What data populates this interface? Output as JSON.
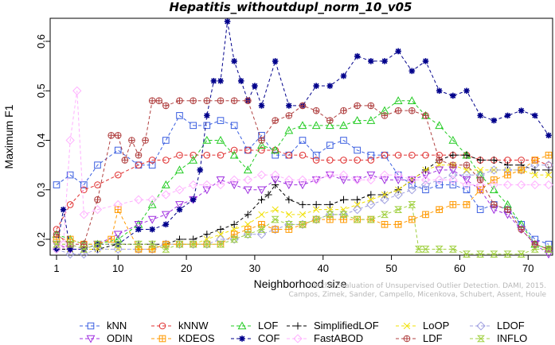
{
  "chart_data": {
    "type": "line",
    "title": "Hepatitis_withoutdupl_norm_10_v05",
    "xlabel": "Neighborhood size",
    "ylabel": "Maximum F1",
    "xlim": [
      1,
      73
    ],
    "ylim": [
      0.17,
      0.65
    ],
    "xticks": [
      1,
      10,
      20,
      30,
      40,
      50,
      60,
      70
    ],
    "yticks": [
      0.2,
      0.3,
      0.4,
      0.5,
      0.6
    ],
    "grid": false,
    "legend_position": "bottom",
    "credit": [
      "Campos, Zimek, Sander, Campello, Micenkova, Schubert, Assent, Houle",
      "On the Evaluation of Unsupervised Outlier Detection. DAMI, 2015."
    ],
    "series": [
      {
        "name": "kNN",
        "color": "#3b5fe0",
        "marker": "square",
        "x": [
          1,
          3,
          5,
          7,
          10,
          13,
          15,
          17,
          19,
          21,
          23,
          25,
          27,
          29,
          31,
          33,
          35,
          37,
          39,
          41,
          43,
          45,
          47,
          49,
          51,
          53,
          55,
          57,
          59,
          61,
          63,
          65,
          67,
          69,
          71,
          73
        ],
        "values": [
          0.31,
          0.33,
          0.31,
          0.35,
          0.38,
          0.35,
          0.35,
          0.4,
          0.45,
          0.43,
          0.43,
          0.44,
          0.43,
          0.38,
          0.41,
          0.37,
          0.37,
          0.4,
          0.37,
          0.39,
          0.4,
          0.38,
          0.37,
          0.37,
          0.33,
          0.31,
          0.3,
          0.31,
          0.31,
          0.3,
          0.26,
          0.27,
          0.26,
          0.23,
          0.2,
          0.19
        ]
      },
      {
        "name": "kNNW",
        "color": "#e03030",
        "marker": "circle",
        "x": [
          1,
          3,
          5,
          7,
          10,
          13,
          15,
          17,
          19,
          21,
          23,
          25,
          27,
          29,
          31,
          33,
          35,
          37,
          39,
          41,
          43,
          45,
          47,
          49,
          51,
          53,
          55,
          57,
          59,
          61,
          63,
          65,
          67,
          69,
          71,
          73
        ],
        "values": [
          0.22,
          0.27,
          0.3,
          0.31,
          0.33,
          0.35,
          0.36,
          0.36,
          0.37,
          0.37,
          0.37,
          0.37,
          0.38,
          0.38,
          0.38,
          0.38,
          0.37,
          0.37,
          0.36,
          0.36,
          0.36,
          0.36,
          0.36,
          0.37,
          0.37,
          0.37,
          0.37,
          0.37,
          0.37,
          0.37,
          0.36,
          0.36,
          0.36,
          0.36,
          0.36,
          0.35
        ]
      },
      {
        "name": "LOF",
        "color": "#22cc22",
        "marker": "triangle",
        "x": [
          1,
          3,
          5,
          7,
          10,
          13,
          15,
          17,
          19,
          21,
          23,
          25,
          27,
          29,
          31,
          33,
          35,
          37,
          39,
          41,
          43,
          45,
          47,
          49,
          51,
          53,
          55,
          57,
          59,
          61,
          63,
          65,
          67,
          69,
          71,
          73
        ],
        "values": [
          0.21,
          0.2,
          0.19,
          0.19,
          0.2,
          0.23,
          0.27,
          0.31,
          0.34,
          0.36,
          0.4,
          0.4,
          0.37,
          0.34,
          0.39,
          0.38,
          0.42,
          0.43,
          0.43,
          0.43,
          0.43,
          0.44,
          0.44,
          0.46,
          0.48,
          0.48,
          0.45,
          0.43,
          0.4,
          0.37,
          0.33,
          0.3,
          0.27,
          0.23,
          0.19,
          0.18
        ]
      },
      {
        "name": "SimplifiedLOF",
        "color": "#000000",
        "marker": "plus",
        "x": [
          1,
          3,
          5,
          7,
          10,
          13,
          15,
          17,
          19,
          21,
          23,
          25,
          27,
          29,
          31,
          32,
          33,
          35,
          37,
          39,
          41,
          43,
          45,
          47,
          49,
          51,
          53,
          55,
          57,
          59,
          61,
          63,
          65,
          67,
          69,
          71,
          73
        ],
        "values": [
          0.18,
          0.18,
          0.18,
          0.18,
          0.19,
          0.19,
          0.19,
          0.19,
          0.2,
          0.2,
          0.21,
          0.22,
          0.23,
          0.25,
          0.28,
          0.29,
          0.31,
          0.28,
          0.27,
          0.27,
          0.27,
          0.28,
          0.28,
          0.29,
          0.29,
          0.3,
          0.32,
          0.34,
          0.36,
          0.37,
          0.37,
          0.36,
          0.36,
          0.35,
          0.35,
          0.34,
          0.34
        ]
      },
      {
        "name": "LoOP",
        "color": "#f0e000",
        "marker": "x",
        "x": [
          1,
          3,
          5,
          7,
          10,
          13,
          15,
          17,
          19,
          21,
          23,
          25,
          27,
          29,
          31,
          33,
          35,
          37,
          39,
          41,
          43,
          45,
          47,
          49,
          51,
          53,
          55,
          57,
          59,
          61,
          63,
          65,
          67,
          69,
          71,
          73
        ],
        "values": [
          0.19,
          0.18,
          0.18,
          0.18,
          0.18,
          0.18,
          0.18,
          0.19,
          0.19,
          0.19,
          0.2,
          0.21,
          0.22,
          0.23,
          0.25,
          0.26,
          0.25,
          0.25,
          0.26,
          0.26,
          0.26,
          0.27,
          0.28,
          0.29,
          0.3,
          0.32,
          0.34,
          0.35,
          0.35,
          0.34,
          0.34,
          0.34,
          0.34,
          0.34,
          0.33,
          0.33
        ]
      },
      {
        "name": "LDOF",
        "color": "#a0a0e0",
        "marker": "diamond",
        "x": [
          1,
          3,
          5,
          7,
          10,
          13,
          15,
          17,
          19,
          21,
          23,
          25,
          27,
          29,
          31,
          33,
          35,
          37,
          39,
          41,
          43,
          45,
          47,
          49,
          51,
          53,
          55,
          57,
          59,
          61,
          63,
          65,
          67,
          69,
          71,
          73
        ],
        "values": [
          0.18,
          0.17,
          0.17,
          0.18,
          0.18,
          0.18,
          0.18,
          0.19,
          0.19,
          0.19,
          0.19,
          0.2,
          0.2,
          0.21,
          0.21,
          0.22,
          0.23,
          0.23,
          0.24,
          0.25,
          0.25,
          0.26,
          0.27,
          0.28,
          0.29,
          0.3,
          0.31,
          0.32,
          0.33,
          0.33,
          0.33,
          0.34,
          0.34,
          0.34,
          0.35,
          0.35
        ]
      },
      {
        "name": "ODIN",
        "color": "#a030e0",
        "marker": "invtriangle",
        "x": [
          1,
          3,
          5,
          7,
          10,
          13,
          15,
          17,
          19,
          21,
          23,
          25,
          27,
          29,
          31,
          33,
          35,
          37,
          39,
          41,
          43,
          45,
          47,
          49,
          51,
          53,
          55,
          57,
          59,
          61,
          63,
          65,
          67,
          69,
          71,
          73
        ],
        "values": [
          0.19,
          0.18,
          0.18,
          0.19,
          0.21,
          0.23,
          0.24,
          0.25,
          0.27,
          0.28,
          0.3,
          0.32,
          0.31,
          0.3,
          0.3,
          0.32,
          0.31,
          0.31,
          0.32,
          0.33,
          0.32,
          0.32,
          0.33,
          0.32,
          0.32,
          0.32,
          0.33,
          0.34,
          0.34,
          0.32,
          0.3,
          0.26,
          0.25,
          0.22,
          0.19,
          0.17
        ]
      },
      {
        "name": "KDEOS",
        "color": "#ff9900",
        "marker": "boxplus",
        "x": [
          1,
          3,
          5,
          7,
          9,
          10,
          13,
          15,
          17,
          19,
          21,
          23,
          25,
          27,
          29,
          31,
          33,
          35,
          37,
          39,
          41,
          43,
          45,
          47,
          49,
          51,
          53,
          55,
          57,
          59,
          61,
          63,
          65,
          67,
          69,
          71,
          73
        ],
        "values": [
          0.2,
          0.2,
          0.19,
          0.19,
          0.2,
          0.26,
          0.18,
          0.18,
          0.19,
          0.19,
          0.19,
          0.19,
          0.19,
          0.21,
          0.22,
          0.23,
          0.22,
          0.22,
          0.23,
          0.24,
          0.24,
          0.24,
          0.24,
          0.24,
          0.23,
          0.23,
          0.24,
          0.25,
          0.26,
          0.27,
          0.27,
          0.3,
          0.32,
          0.33,
          0.34,
          0.36,
          0.37
        ]
      },
      {
        "name": "COF",
        "color": "#00008b",
        "marker": "asterisk",
        "x": [
          1,
          2,
          3,
          5,
          7,
          10,
          13,
          15,
          17,
          19,
          21,
          22,
          23,
          24,
          25,
          26,
          27,
          28,
          29,
          30,
          31,
          33,
          35,
          37,
          39,
          41,
          43,
          45,
          47,
          49,
          51,
          53,
          55,
          57,
          59,
          61,
          63,
          65,
          67,
          69,
          71,
          73
        ],
        "values": [
          0.18,
          0.26,
          0.18,
          0.18,
          0.19,
          0.19,
          0.22,
          0.22,
          0.23,
          0.26,
          0.28,
          0.34,
          0.45,
          0.52,
          0.52,
          0.64,
          0.56,
          0.52,
          0.48,
          0.51,
          0.47,
          0.56,
          0.47,
          0.47,
          0.51,
          0.51,
          0.53,
          0.57,
          0.56,
          0.56,
          0.58,
          0.54,
          0.56,
          0.5,
          0.49,
          0.5,
          0.45,
          0.44,
          0.45,
          0.46,
          0.45,
          0.41
        ]
      },
      {
        "name": "FastABOD",
        "color": "#ffb0ff",
        "marker": "diamond",
        "x": [
          1,
          2,
          3,
          4,
          5,
          7,
          10,
          13,
          15,
          17,
          19,
          21,
          23,
          25,
          27,
          29,
          31,
          33,
          35,
          37,
          39,
          41,
          43,
          45,
          47,
          49,
          51,
          53,
          55,
          57,
          59,
          61,
          63,
          65,
          67,
          69,
          71,
          73
        ],
        "values": [
          0.18,
          0.19,
          0.4,
          0.5,
          0.25,
          0.26,
          0.27,
          0.28,
          0.28,
          0.29,
          0.3,
          0.31,
          0.31,
          0.31,
          0.32,
          0.32,
          0.33,
          0.33,
          0.32,
          0.32,
          0.32,
          0.33,
          0.33,
          0.32,
          0.32,
          0.33,
          0.33,
          0.32,
          0.32,
          0.32,
          0.32,
          0.31,
          0.31,
          0.31,
          0.31,
          0.31,
          0.31,
          0.31
        ]
      },
      {
        "name": "LDF",
        "color": "#b04040",
        "marker": "circleplus",
        "x": [
          1,
          3,
          5,
          7,
          9,
          10,
          11,
          12,
          13,
          14,
          15,
          16,
          17,
          19,
          21,
          23,
          25,
          27,
          29,
          31,
          33,
          35,
          37,
          39,
          41,
          43,
          45,
          47,
          49,
          51,
          53,
          55,
          57,
          59,
          61,
          63,
          65,
          67,
          69,
          71,
          73
        ],
        "values": [
          0.21,
          0.19,
          0.19,
          0.28,
          0.41,
          0.41,
          0.36,
          0.4,
          0.37,
          0.4,
          0.48,
          0.48,
          0.47,
          0.48,
          0.48,
          0.48,
          0.48,
          0.48,
          0.48,
          0.4,
          0.44,
          0.45,
          0.47,
          0.46,
          0.44,
          0.46,
          0.47,
          0.47,
          0.45,
          0.46,
          0.46,
          0.45,
          0.36,
          0.35,
          0.35,
          0.32,
          0.27,
          0.26,
          0.22,
          0.19,
          0.18
        ]
      },
      {
        "name": "INFLO",
        "color": "#a0d040",
        "marker": "hourglass",
        "x": [
          1,
          3,
          5,
          7,
          10,
          13,
          15,
          17,
          19,
          21,
          23,
          25,
          27,
          29,
          31,
          33,
          35,
          37,
          39,
          41,
          43,
          45,
          47,
          49,
          51,
          53,
          54,
          55,
          57,
          59,
          61,
          63,
          65,
          67,
          69,
          71,
          73
        ],
        "values": [
          0.19,
          0.19,
          0.18,
          0.19,
          0.19,
          0.19,
          0.19,
          0.18,
          0.19,
          0.19,
          0.19,
          0.19,
          0.2,
          0.21,
          0.22,
          0.24,
          0.23,
          0.23,
          0.24,
          0.25,
          0.25,
          0.24,
          0.24,
          0.25,
          0.26,
          0.27,
          0.18,
          0.18,
          0.18,
          0.18,
          0.17,
          0.17,
          0.17,
          0.17,
          0.17,
          0.18,
          0.18
        ]
      }
    ]
  }
}
